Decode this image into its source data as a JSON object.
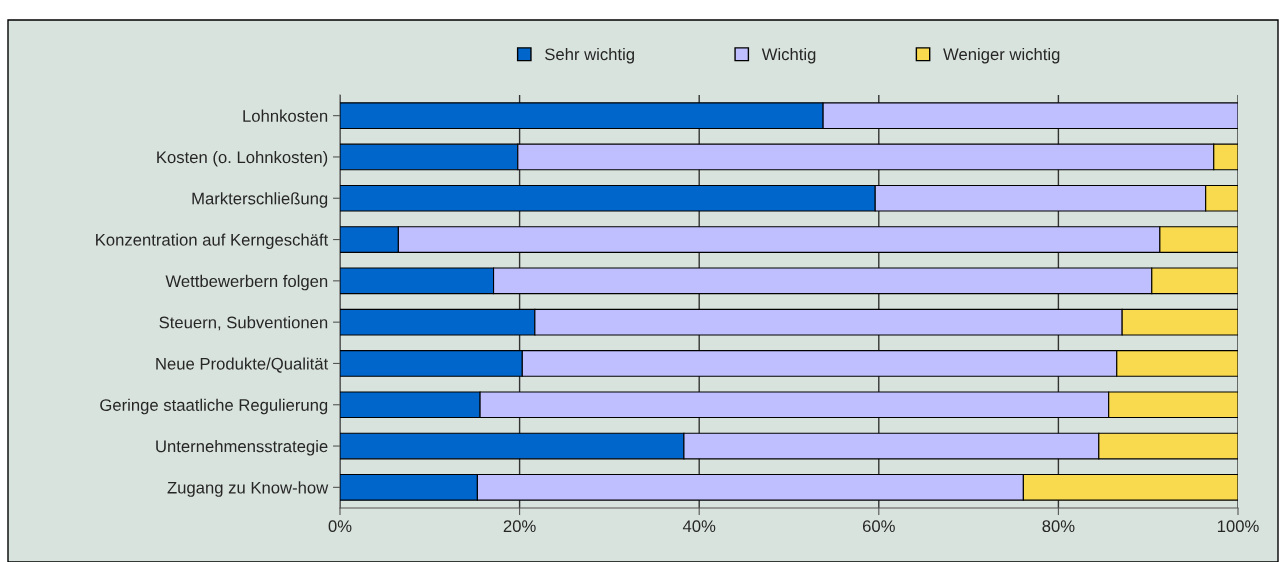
{
  "chart_data": {
    "type": "bar",
    "orientation": "horizontal",
    "stacked": true,
    "categories": [
      "Lohnkosten",
      "Kosten (o. Lohnkosten)",
      "Markterschließung",
      "Konzentration auf Kerngeschäft",
      "Wettbewerbern folgen",
      "Steuern, Subventionen",
      "Neue Produkte/Qualität",
      "Geringe staatliche Regulierung",
      "Unternehmensstrategie",
      "Zugang zu Know-how"
    ],
    "series": [
      {
        "name": "Sehr wichtig",
        "color": "#0066cc",
        "values": [
          53.8,
          19.8,
          59.6,
          6.5,
          17.1,
          21.7,
          20.3,
          15.6,
          38.3,
          15.3
        ]
      },
      {
        "name": "Wichtig",
        "color": "#bfbfff",
        "values": [
          46.2,
          77.5,
          36.8,
          84.8,
          73.3,
          65.4,
          66.2,
          70.0,
          46.2,
          60.8
        ]
      },
      {
        "name": "Weniger wichtig",
        "color": "#f9d94d",
        "values": [
          null,
          2.7,
          3.6,
          8.7,
          9.6,
          12.9,
          13.5,
          14.4,
          15.5,
          23.9
        ]
      }
    ],
    "xlim": [
      0,
      100
    ],
    "xticks": [
      {
        "value": 0,
        "label": "0%"
      },
      {
        "value": 20,
        "label": "20%"
      },
      {
        "value": 40,
        "label": "40%"
      },
      {
        "value": 60,
        "label": "60%"
      },
      {
        "value": 80,
        "label": "80%"
      },
      {
        "value": 100,
        "label": "100%"
      }
    ],
    "grid": "x",
    "legend": "top"
  }
}
